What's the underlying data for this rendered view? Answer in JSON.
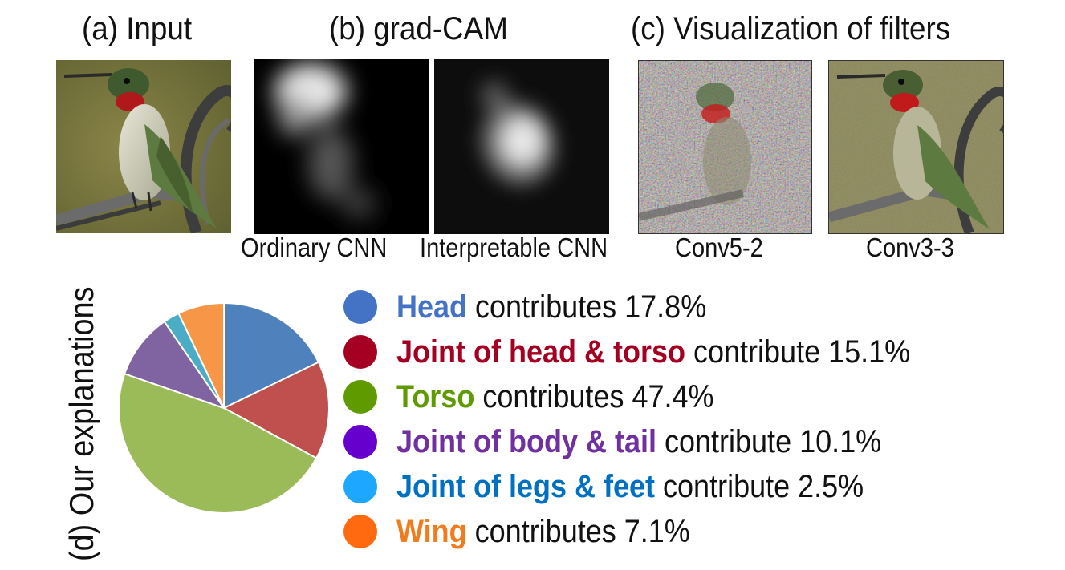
{
  "titles": {
    "a": "(a) Input",
    "b": "(b) grad-CAM",
    "c": "(c) Visualization of filters"
  },
  "captions": {
    "ordinary": "Ordinary CNN",
    "interpretable": "Interpretable CNN",
    "conv52": "Conv5-2",
    "conv33": "Conv3-3"
  },
  "side_label": "(d) Our explanations",
  "colors": {
    "head": "#4f81bd",
    "joint_head_torso": "#c0504d",
    "torso": "#9bbb59",
    "joint_body_tail": "#8064a2",
    "joint_legs_feet": "#4bacc6",
    "wing": "#f79646"
  },
  "legend": [
    {
      "part": "Head",
      "rest": " contributes 17.8%",
      "text_color": "#4472c4",
      "dot_color": "#4472c4"
    },
    {
      "part": "Joint of head & torso",
      "rest": " contribute 15.1%",
      "text_color": "#a50021",
      "dot_color": "#a50021"
    },
    {
      "part": "Torso",
      "rest": " contributes 47.4%",
      "text_color": "#5e9a00",
      "dot_color": "#5e9a00"
    },
    {
      "part": "Joint of body & tail",
      "rest": " contribute 10.1%",
      "text_color": "#7030a0",
      "dot_color": "#6600cc"
    },
    {
      "part": "Joint of legs & feet",
      "rest": " contribute 2.5%",
      "text_color": "#0070c0",
      "dot_color": "#1ea7ff"
    },
    {
      "part": "Wing",
      "rest": " contributes 7.1%",
      "text_color": "#f07c1e",
      "dot_color": "#ff6a10"
    }
  ],
  "chart_data": {
    "type": "pie",
    "slices": [
      {
        "label": "Head",
        "value": 17.8,
        "color": "#4f81bd"
      },
      {
        "label": "Joint of head & torso",
        "value": 15.1,
        "color": "#c0504d"
      },
      {
        "label": "Torso",
        "value": 47.4,
        "color": "#9bbb59"
      },
      {
        "label": "Joint of body & tail",
        "value": 10.1,
        "color": "#8064a2"
      },
      {
        "label": "Joint of legs & feet",
        "value": 2.5,
        "color": "#4bacc6"
      },
      {
        "label": "Wing",
        "value": 7.1,
        "color": "#f79646"
      }
    ],
    "start": "12 o'clock",
    "direction": "clockwise",
    "legend": "right"
  }
}
